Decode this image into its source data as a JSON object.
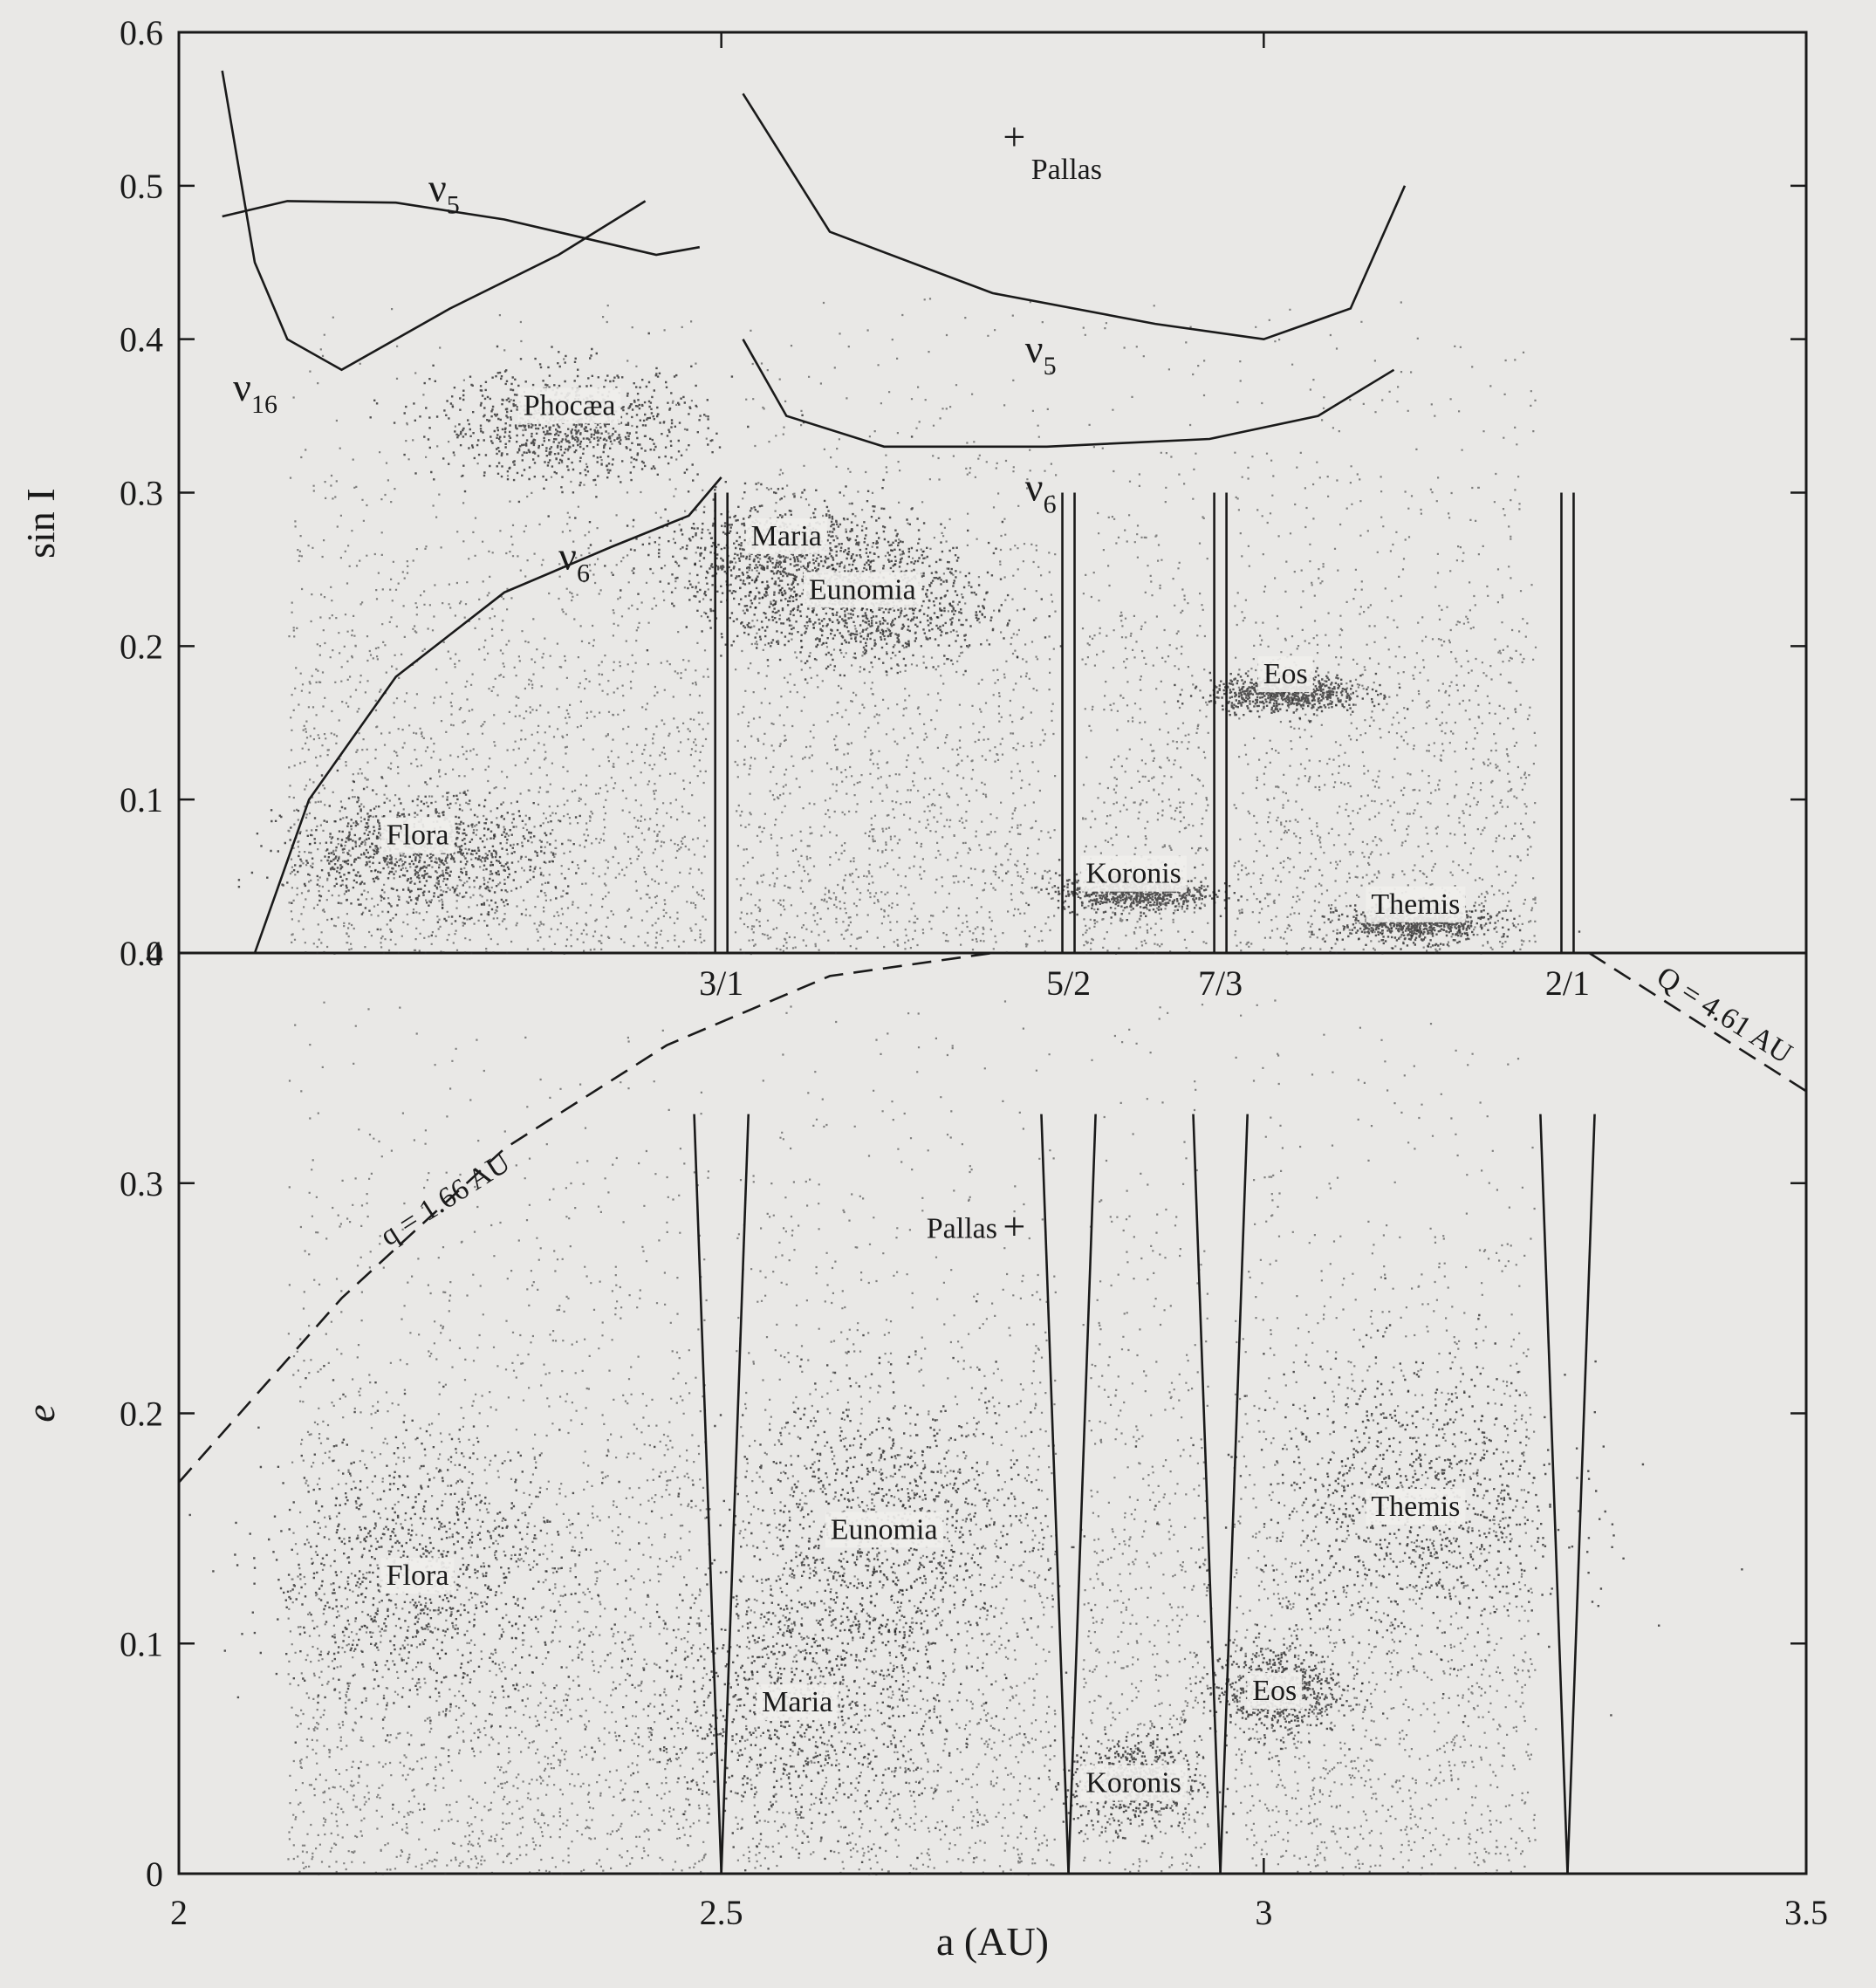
{
  "chart_data": [
    {
      "type": "scatter",
      "panel": "top",
      "xlim": [
        2,
        3.5
      ],
      "ylim": [
        0,
        0.6
      ],
      "ylabel": "sin I",
      "yticks": [
        "0",
        "0.1",
        "0.2",
        "0.3",
        "0.4",
        "0.5",
        "0.6"
      ],
      "grid": false,
      "families": [
        {
          "name": "Flora",
          "a": 2.22,
          "value": 0.065
        },
        {
          "name": "Phocæa",
          "a": 2.36,
          "value": 0.345
        },
        {
          "name": "Maria",
          "a": 2.56,
          "value": 0.26
        },
        {
          "name": "Eunomia",
          "a": 2.63,
          "value": 0.225
        },
        {
          "name": "Koronis",
          "a": 2.88,
          "value": 0.04
        },
        {
          "name": "Eos",
          "a": 3.02,
          "value": 0.17
        },
        {
          "name": "Themis",
          "a": 3.14,
          "value": 0.02
        }
      ],
      "markers": [
        {
          "name": "Pallas",
          "a": 2.77,
          "value": 0.53,
          "symbol": "+"
        }
      ],
      "secular_resonances": [
        {
          "label": "ν6",
          "x": [
            2.07,
            2.12,
            2.2,
            2.3,
            2.4,
            2.47,
            2.5
          ],
          "y": [
            0.0,
            0.1,
            0.18,
            0.235,
            0.265,
            0.285,
            0.31
          ]
        },
        {
          "label": "ν5",
          "x": [
            2.04,
            2.1,
            2.2,
            2.3,
            2.44,
            2.48
          ],
          "y": [
            0.48,
            0.49,
            0.489,
            0.478,
            0.455,
            0.46
          ]
        },
        {
          "label": "ν16",
          "x": [
            2.04,
            2.07,
            2.1,
            2.15,
            2.25,
            2.35,
            2.43
          ],
          "y": [
            0.575,
            0.45,
            0.4,
            0.38,
            0.42,
            0.455,
            0.49
          ]
        },
        {
          "label": "ν5",
          "x": [
            2.52,
            2.6,
            2.75,
            2.9,
            3.0,
            3.08,
            3.13
          ],
          "y": [
            0.56,
            0.47,
            0.43,
            0.41,
            0.4,
            0.42,
            0.5
          ]
        },
        {
          "label": "ν6",
          "x": [
            2.52,
            2.56,
            2.65,
            2.8,
            2.95,
            3.05,
            3.12
          ],
          "y": [
            0.4,
            0.35,
            0.33,
            0.33,
            0.335,
            0.35,
            0.38
          ]
        }
      ]
    },
    {
      "type": "scatter",
      "panel": "bottom",
      "xlim": [
        2,
        3.5
      ],
      "ylim": [
        0,
        0.4
      ],
      "xlabel": "a (AU)",
      "ylabel": "e",
      "xticks": [
        "2",
        "2.5",
        "3",
        "3.5"
      ],
      "yticks": [
        "0",
        "0.1",
        "0.2",
        "0.3",
        "0.4"
      ],
      "grid": false,
      "families": [
        {
          "name": "Flora",
          "a": 2.22,
          "value": 0.13
        },
        {
          "name": "Eunomia",
          "a": 2.65,
          "value": 0.15
        },
        {
          "name": "Maria",
          "a": 2.57,
          "value": 0.075
        },
        {
          "name": "Koronis",
          "a": 2.88,
          "value": 0.04
        },
        {
          "name": "Eos",
          "a": 3.01,
          "value": 0.08
        },
        {
          "name": "Themis",
          "a": 3.14,
          "value": 0.16
        }
      ],
      "markers": [
        {
          "name": "Pallas",
          "a": 2.77,
          "value": 0.28,
          "symbol": "+"
        }
      ],
      "boundaries": [
        {
          "label": "q = 1.66 AU",
          "x": [
            2.0,
            2.15,
            2.3,
            2.45,
            2.6,
            2.75
          ],
          "y": [
            0.17,
            0.25,
            0.315,
            0.36,
            0.39,
            0.4
          ]
        },
        {
          "label": "Q = 4.61 AU",
          "x": [
            3.3,
            3.5
          ],
          "y": [
            0.4,
            0.34
          ]
        }
      ],
      "resonance_gaps": [
        {
          "label": "3/1",
          "a": 2.5
        },
        {
          "label": "5/2",
          "a": 2.82
        },
        {
          "label": "7/3",
          "a": 2.96
        },
        {
          "label": "2/1",
          "a": 3.28
        }
      ]
    }
  ]
}
